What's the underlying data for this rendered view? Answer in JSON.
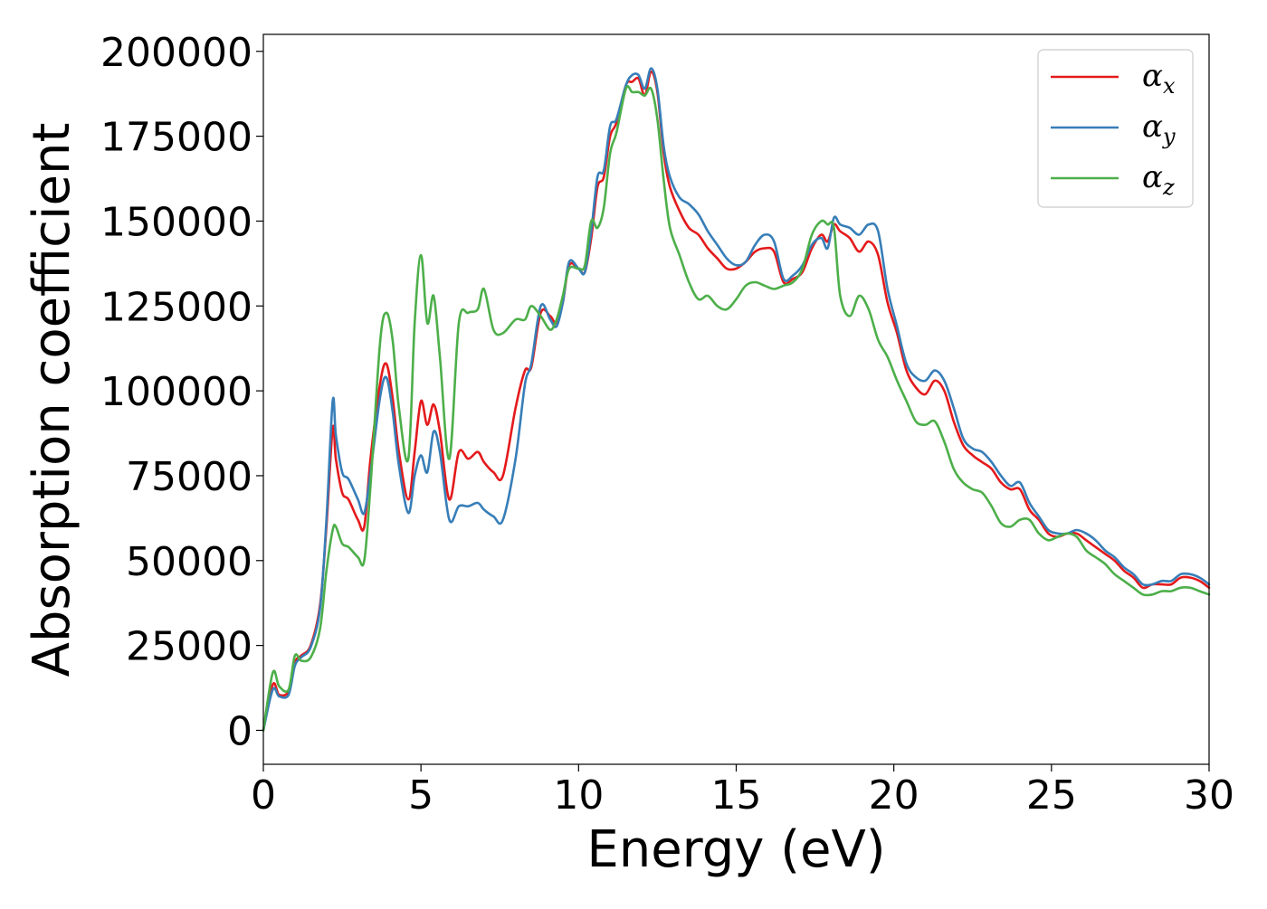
{
  "chart_data": {
    "type": "line",
    "xlabel": "Energy (eV)",
    "ylabel": "Absorption coefficient",
    "xlim": [
      0,
      30
    ],
    "ylim": [
      -10000,
      205000
    ],
    "xticks": [
      0,
      5,
      10,
      15,
      20,
      25,
      30
    ],
    "xtick_labels": [
      "0",
      "5",
      "10",
      "15",
      "20",
      "25",
      "30"
    ],
    "yticks": [
      0,
      25000,
      50000,
      75000,
      100000,
      125000,
      150000,
      175000,
      200000
    ],
    "ytick_labels": [
      "0",
      "25000",
      "50000",
      "75000",
      "100000",
      "125000",
      "150000",
      "175000",
      "200000"
    ],
    "grid": false,
    "legend_position": "top-right",
    "series": [
      {
        "name": "αx",
        "name_base": "α",
        "name_sub": "x",
        "color": "#e41a1c",
        "x": [
          0,
          0.3,
          0.5,
          0.8,
          1,
          1.2,
          1.5,
          1.8,
          2,
          2.2,
          2.3,
          2.5,
          2.7,
          3,
          3.2,
          3.4,
          3.7,
          3.9,
          4.1,
          4.3,
          4.6,
          4.8,
          5,
          5.2,
          5.4,
          5.6,
          5.9,
          6.2,
          6.5,
          6.8,
          7,
          7.3,
          7.6,
          8,
          8.3,
          8.5,
          8.8,
          9.1,
          9.3,
          9.5,
          9.7,
          10,
          10.2,
          10.4,
          10.6,
          10.8,
          11,
          11.2,
          11.5,
          11.7,
          11.9,
          12.1,
          12.3,
          12.5,
          12.7,
          12.9,
          13.2,
          13.5,
          13.8,
          14.1,
          14.4,
          14.7,
          15,
          15.3,
          15.6,
          15.9,
          16.2,
          16.5,
          16.8,
          17.1,
          17.4,
          17.7,
          17.9,
          18.1,
          18.3,
          18.6,
          18.9,
          19.2,
          19.5,
          19.8,
          20.1,
          20.4,
          20.7,
          21,
          21.3,
          21.6,
          21.9,
          22.2,
          22.5,
          22.8,
          23.1,
          23.4,
          23.7,
          24,
          24.3,
          24.6,
          24.9,
          25.2,
          25.5,
          25.8,
          26.1,
          26.4,
          26.7,
          27,
          27.3,
          27.6,
          27.9,
          28.2,
          28.5,
          28.8,
          29.1,
          29.4,
          29.7,
          30
        ],
        "y": [
          0,
          13500,
          10500,
          11500,
          20000,
          22000,
          25000,
          37000,
          60000,
          89000,
          80000,
          70000,
          68000,
          62000,
          60000,
          80000,
          102000,
          108000,
          98000,
          82000,
          68000,
          82000,
          97000,
          90000,
          96000,
          88000,
          68000,
          82000,
          80000,
          82000,
          79000,
          76000,
          75000,
          95000,
          106000,
          107000,
          123000,
          122000,
          120000,
          126000,
          137000,
          136000,
          135000,
          145000,
          160000,
          163000,
          175000,
          179000,
          190000,
          191000,
          192000,
          187000,
          194000,
          188000,
          170000,
          160000,
          153000,
          148000,
          146000,
          142000,
          139000,
          136000,
          136000,
          138000,
          141000,
          142000,
          141000,
          132000,
          133000,
          135000,
          142000,
          146000,
          144000,
          149000,
          147000,
          145000,
          141000,
          144000,
          140000,
          126000,
          117000,
          106000,
          101000,
          99000,
          103000,
          100000,
          91000,
          84000,
          81000,
          79000,
          77000,
          73000,
          71000,
          71000,
          65000,
          62000,
          58000,
          57000,
          58000,
          58000,
          56000,
          54000,
          52000,
          50000,
          47000,
          45000,
          42000,
          43000,
          43000,
          43000,
          45000,
          45000,
          44000,
          42000
        ]
      },
      {
        "name": "αy",
        "name_base": "α",
        "name_sub": "y",
        "color": "#377eb8",
        "x": [
          0,
          0.3,
          0.5,
          0.8,
          1,
          1.2,
          1.5,
          1.8,
          2,
          2.2,
          2.3,
          2.5,
          2.7,
          3,
          3.2,
          3.4,
          3.7,
          3.9,
          4.1,
          4.3,
          4.6,
          4.8,
          5,
          5.2,
          5.4,
          5.6,
          5.9,
          6.2,
          6.5,
          6.8,
          7,
          7.3,
          7.6,
          8,
          8.3,
          8.5,
          8.8,
          9.1,
          9.3,
          9.5,
          9.7,
          10,
          10.2,
          10.4,
          10.6,
          10.8,
          11,
          11.2,
          11.5,
          11.7,
          11.9,
          12.1,
          12.3,
          12.5,
          12.7,
          12.9,
          13.2,
          13.5,
          13.8,
          14.1,
          14.4,
          14.7,
          15,
          15.3,
          15.6,
          15.9,
          16.2,
          16.5,
          16.8,
          17.1,
          17.4,
          17.7,
          17.9,
          18.1,
          18.3,
          18.6,
          18.9,
          19.2,
          19.5,
          19.8,
          20.1,
          20.4,
          20.7,
          21,
          21.3,
          21.6,
          21.9,
          22.2,
          22.5,
          22.8,
          23.1,
          23.4,
          23.7,
          24,
          24.3,
          24.6,
          24.9,
          25.2,
          25.5,
          25.8,
          26.1,
          26.4,
          26.7,
          27,
          27.3,
          27.6,
          27.9,
          28.2,
          28.5,
          28.8,
          29.1,
          29.4,
          29.7,
          30
        ],
        "y": [
          0,
          12000,
          10000,
          10500,
          19000,
          21500,
          24500,
          36000,
          62000,
          97000,
          87000,
          76000,
          74000,
          68000,
          64000,
          76000,
          98000,
          104000,
          94000,
          78000,
          64000,
          75000,
          81000,
          76000,
          88000,
          82000,
          62000,
          66000,
          66000,
          67000,
          65000,
          63000,
          62000,
          80000,
          102000,
          108000,
          125000,
          121000,
          119000,
          126000,
          138000,
          136000,
          135000,
          147000,
          163000,
          165000,
          178000,
          180000,
          190000,
          193000,
          193000,
          189000,
          195000,
          189000,
          172000,
          163000,
          157000,
          155000,
          152000,
          147000,
          143000,
          139000,
          137000,
          138000,
          143000,
          146000,
          144000,
          133000,
          134000,
          137000,
          143000,
          145000,
          142000,
          151000,
          149000,
          148000,
          146000,
          149000,
          147000,
          130000,
          119000,
          108000,
          104000,
          103000,
          106000,
          103000,
          95000,
          86000,
          83000,
          82000,
          79000,
          75000,
          72000,
          73000,
          67000,
          63000,
          59000,
          58000,
          58000,
          59000,
          58000,
          56000,
          53000,
          51000,
          48000,
          46000,
          43000,
          43000,
          44000,
          44000,
          46000,
          46000,
          45000,
          43000
        ]
      },
      {
        "name": "αz",
        "name_base": "α",
        "name_sub": "z",
        "color": "#4daf4a",
        "x": [
          0,
          0.3,
          0.5,
          0.8,
          1,
          1.2,
          1.5,
          1.8,
          2,
          2.2,
          2.3,
          2.5,
          2.7,
          3,
          3.2,
          3.4,
          3.7,
          3.9,
          4.1,
          4.3,
          4.6,
          4.8,
          5,
          5.2,
          5.4,
          5.6,
          5.9,
          6.2,
          6.5,
          6.8,
          7,
          7.3,
          7.6,
          8,
          8.3,
          8.5,
          8.8,
          9.1,
          9.3,
          9.5,
          9.7,
          10,
          10.2,
          10.4,
          10.6,
          10.8,
          11,
          11.2,
          11.5,
          11.7,
          11.9,
          12.1,
          12.3,
          12.5,
          12.7,
          12.9,
          13.2,
          13.5,
          13.8,
          14.1,
          14.4,
          14.7,
          15,
          15.3,
          15.6,
          15.9,
          16.2,
          16.5,
          16.8,
          17.1,
          17.4,
          17.7,
          17.9,
          18.1,
          18.3,
          18.6,
          18.9,
          19.2,
          19.5,
          19.8,
          20.1,
          20.4,
          20.7,
          21,
          21.3,
          21.6,
          21.9,
          22.2,
          22.5,
          22.8,
          23.1,
          23.4,
          23.7,
          24,
          24.3,
          24.6,
          24.9,
          25.2,
          25.5,
          25.8,
          26.1,
          26.4,
          26.7,
          27,
          27.3,
          27.6,
          27.9,
          28.2,
          28.5,
          28.8,
          29.1,
          29.4,
          29.7,
          30
        ],
        "y": [
          0,
          17000,
          13000,
          12000,
          22000,
          20500,
          21500,
          30000,
          47000,
          59000,
          60000,
          55000,
          54000,
          51000,
          50000,
          72000,
          114000,
          123000,
          115000,
          95000,
          80000,
          120000,
          140000,
          120000,
          128000,
          110000,
          80000,
          120000,
          123000,
          124000,
          130000,
          118000,
          117000,
          121000,
          121000,
          125000,
          122000,
          118000,
          121000,
          128000,
          136000,
          136000,
          137000,
          150000,
          148000,
          154000,
          170000,
          176000,
          189000,
          188000,
          188000,
          187000,
          189000,
          180000,
          162000,
          148000,
          140000,
          132000,
          127000,
          128000,
          125000,
          124000,
          127000,
          131000,
          132000,
          131000,
          130000,
          131000,
          132000,
          136000,
          146000,
          150000,
          149000,
          148000,
          128000,
          122000,
          128000,
          124000,
          115000,
          110000,
          103000,
          97000,
          91000,
          90000,
          91000,
          85000,
          77000,
          73000,
          71000,
          70000,
          66000,
          61000,
          60000,
          62000,
          62000,
          58000,
          56000,
          57000,
          58000,
          57000,
          53000,
          51000,
          49000,
          46000,
          44000,
          42000,
          40000,
          40000,
          41000,
          41000,
          42000,
          42000,
          41000,
          40000
        ]
      }
    ]
  }
}
